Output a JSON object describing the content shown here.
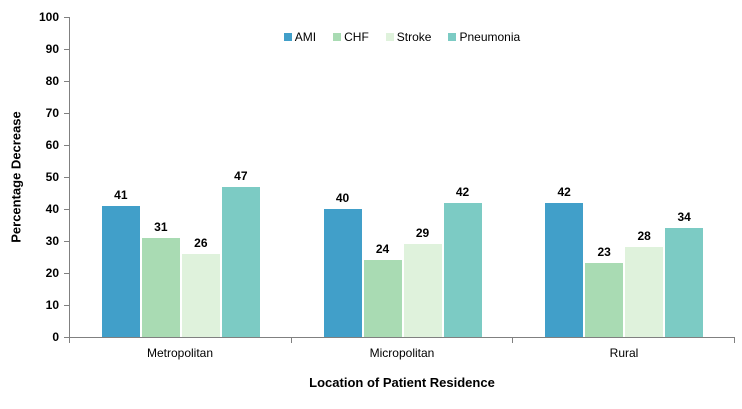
{
  "chart_data": {
    "type": "bar",
    "title": "",
    "categories": [
      "Metropolitan",
      "Micropolitan",
      "Rural"
    ],
    "series": [
      {
        "name": "AMI",
        "color": "#419FC9",
        "values": [
          41,
          40,
          42
        ]
      },
      {
        "name": "CHF",
        "color": "#A9DBB3",
        "values": [
          31,
          24,
          23
        ]
      },
      {
        "name": "Stroke",
        "color": "#DFF2DC",
        "values": [
          26,
          29,
          28
        ]
      },
      {
        "name": "Pneumonia",
        "color": "#7CCBC4",
        "values": [
          47,
          42,
          34
        ]
      }
    ],
    "xlabel": "Location of Patient Residence",
    "ylabel": "Percentage Decrease",
    "ylim": [
      0,
      100
    ],
    "yticks": [
      0,
      10,
      20,
      30,
      40,
      50,
      60,
      70,
      80,
      90,
      100
    ],
    "grid": false,
    "data_labels": true,
    "legend_position": "top-center",
    "axis_color": "#808080",
    "text_color": "#000000"
  }
}
